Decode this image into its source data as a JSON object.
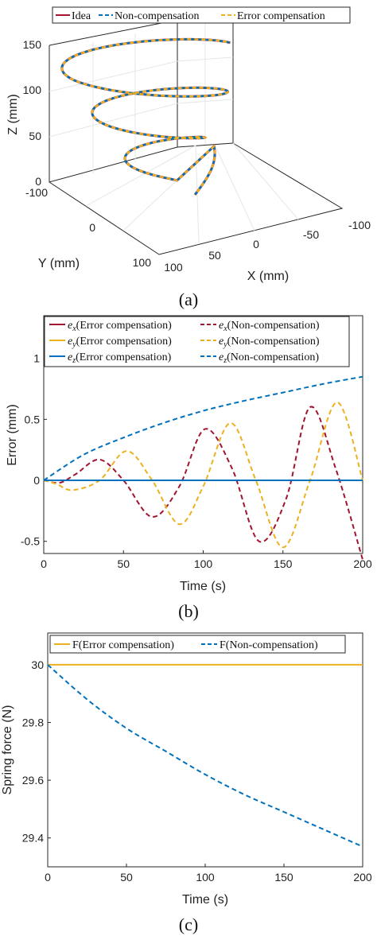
{
  "colors": {
    "red": "#a2142f",
    "blue": "#0072bd",
    "orange": "#edb120",
    "axis": "#262626",
    "grid": "#e6e6e6"
  },
  "chart_data": [
    {
      "type": "line",
      "plot": "3d",
      "caption": "(a)",
      "legend": [
        "Idea",
        "Non-compensation",
        "Error compensation"
      ],
      "legend_position": "top",
      "xlabel": "X (mm)",
      "ylabel": "Y (mm)",
      "zlabel": "Z (mm)",
      "xticks": [
        "100",
        "50",
        "0",
        "-50",
        "-100"
      ],
      "yticks": [
        "-100",
        "0",
        "100"
      ],
      "zticks": [
        "0",
        "50",
        "100",
        "150"
      ],
      "xlim": [
        -100,
        100
      ],
      "ylim": [
        -100,
        100
      ],
      "zlim": [
        0,
        150
      ],
      "grid": true,
      "series": [
        {
          "name": "Idea",
          "description": "helical trajectory rising from z=0 to z=150"
        },
        {
          "name": "Non-compensation"
        },
        {
          "name": "Error compensation"
        }
      ]
    },
    {
      "type": "line",
      "caption": "(b)",
      "xlabel": "Time (s)",
      "ylabel": "Error (mm)",
      "xlim": [
        0,
        200
      ],
      "ylim": [
        -0.6,
        1.35
      ],
      "xticks": [
        0,
        50,
        100,
        150,
        200
      ],
      "yticks": [
        -0.5,
        0,
        0.5,
        1
      ],
      "xtick_labels": [
        "0",
        "50",
        "100",
        "150",
        "200"
      ],
      "ytick_labels": [
        "-0.5",
        "0",
        "0.5",
        "1"
      ],
      "legend_position": "top",
      "grid": false,
      "series": [
        {
          "name": "e_x(Error compensation)",
          "symbol": "e",
          "sub": "x",
          "text": "(Error compensation)",
          "color": "#a2142f",
          "dash": false,
          "x": [
            0,
            200
          ],
          "y": [
            0,
            0
          ]
        },
        {
          "name": "e_x(Non-compensation)",
          "symbol": "e",
          "sub": "x",
          "text": "(Non-compensation)",
          "color": "#a2142f",
          "dash": true,
          "x": [
            0,
            10,
            20,
            35,
            50,
            68,
            85,
            101,
            118,
            135,
            152,
            167,
            183,
            200
          ],
          "y": [
            0,
            -0.02,
            0.05,
            0.17,
            0.0,
            -0.3,
            -0.05,
            0.42,
            0.1,
            -0.5,
            -0.15,
            0.6,
            0.1,
            -0.65
          ]
        },
        {
          "name": "e_y(Error compensation)",
          "symbol": "e",
          "sub": "y",
          "text": "(Error compensation)",
          "color": "#edb120",
          "dash": false,
          "x": [
            0,
            200
          ],
          "y": [
            0,
            0
          ]
        },
        {
          "name": "e_y(Non-compensation)",
          "symbol": "e",
          "sub": "y",
          "text": "(Non-compensation)",
          "color": "#edb120",
          "dash": true,
          "x": [
            0,
            8,
            18,
            35,
            52,
            68,
            85,
            100,
            117,
            133,
            150,
            167,
            184,
            200
          ],
          "y": [
            0,
            -0.03,
            -0.08,
            0.0,
            0.24,
            0.0,
            -0.36,
            -0.05,
            0.47,
            0.0,
            -0.55,
            0.0,
            0.64,
            0.0
          ]
        },
        {
          "name": "e_z(Error compensation)",
          "symbol": "e",
          "sub": "z",
          "text": "(Error compensation)",
          "color": "#0072bd",
          "dash": false,
          "x": [
            0,
            200
          ],
          "y": [
            0,
            0
          ]
        },
        {
          "name": "e_z(Non-compensation)",
          "symbol": "e",
          "sub": "z",
          "text": "(Non-compensation)",
          "color": "#0072bd",
          "dash": true,
          "x": [
            0,
            25,
            50,
            75,
            100,
            125,
            150,
            175,
            200
          ],
          "y": [
            0,
            0.21,
            0.35,
            0.47,
            0.57,
            0.65,
            0.72,
            0.79,
            0.85
          ]
        }
      ]
    },
    {
      "type": "line",
      "caption": "(c)",
      "xlabel": "Time (s)",
      "ylabel": "Spring force (N)",
      "xlim": [
        0,
        200
      ],
      "ylim": [
        29.3,
        30.11
      ],
      "xticks": [
        0,
        50,
        100,
        150,
        200
      ],
      "yticks": [
        29.4,
        29.6,
        29.8,
        30
      ],
      "xtick_labels": [
        "0",
        "50",
        "100",
        "150",
        "200"
      ],
      "ytick_labels": [
        "29.4",
        "29.6",
        "29.8",
        "30"
      ],
      "legend_position": "top",
      "grid": false,
      "series": [
        {
          "name": "F(Error compensation)",
          "color": "#edb120",
          "dash": false,
          "x": [
            0,
            200
          ],
          "y": [
            30,
            30
          ]
        },
        {
          "name": "F(Non-compensation)",
          "color": "#0072bd",
          "dash": true,
          "x": [
            0,
            25,
            50,
            75,
            100,
            125,
            150,
            175,
            200
          ],
          "y": [
            30,
            29.88,
            29.78,
            29.7,
            29.62,
            29.55,
            29.49,
            29.43,
            29.37
          ]
        }
      ]
    }
  ]
}
